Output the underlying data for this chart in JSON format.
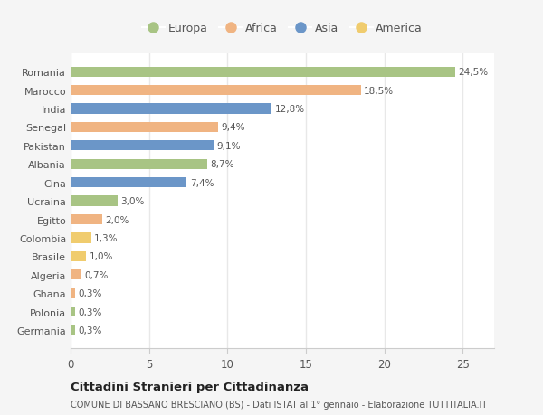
{
  "countries": [
    "Romania",
    "Marocco",
    "India",
    "Senegal",
    "Pakistan",
    "Albania",
    "Cina",
    "Ucraina",
    "Egitto",
    "Colombia",
    "Brasile",
    "Algeria",
    "Ghana",
    "Polonia",
    "Germania"
  ],
  "values": [
    24.5,
    18.5,
    12.8,
    9.4,
    9.1,
    8.7,
    7.4,
    3.0,
    2.0,
    1.3,
    1.0,
    0.7,
    0.3,
    0.3,
    0.3
  ],
  "labels": [
    "24,5%",
    "18,5%",
    "12,8%",
    "9,4%",
    "9,1%",
    "8,7%",
    "7,4%",
    "3,0%",
    "2,0%",
    "1,3%",
    "1,0%",
    "0,7%",
    "0,3%",
    "0,3%",
    "0,3%"
  ],
  "continents": [
    "Europa",
    "Africa",
    "Asia",
    "Africa",
    "Asia",
    "Europa",
    "Asia",
    "Europa",
    "Africa",
    "America",
    "America",
    "Africa",
    "Africa",
    "Europa",
    "Europa"
  ],
  "colors": {
    "Europa": "#a8c484",
    "Africa": "#f0b482",
    "Asia": "#6b96c8",
    "America": "#f0cc6e"
  },
  "legend_order": [
    "Europa",
    "Africa",
    "Asia",
    "America"
  ],
  "title": "Cittadini Stranieri per Cittadinanza",
  "subtitle": "COMUNE DI BASSANO BRESCIANO (BS) - Dati ISTAT al 1° gennaio - Elaborazione TUTTITALIA.IT",
  "xlim": [
    0,
    27
  ],
  "xticks": [
    0,
    5,
    10,
    15,
    20,
    25
  ],
  "fig_background": "#f5f5f5",
  "plot_background": "#ffffff",
  "grid_color": "#e8e8e8",
  "bar_height": 0.55
}
